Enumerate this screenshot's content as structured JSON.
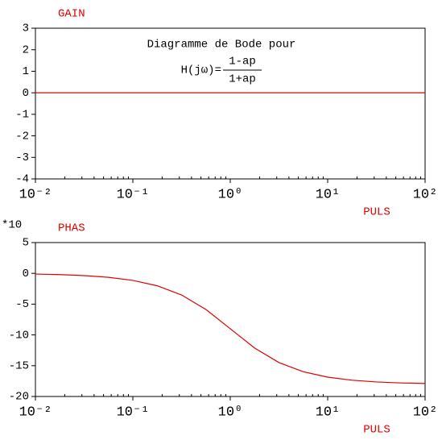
{
  "chart_data": [
    {
      "type": "line",
      "title": "Diagramme de Bode pour",
      "formula": {
        "lhs": "H(jω)=",
        "numerator": "1-ap",
        "denominator": "1+ap"
      },
      "ylabel": "GAIN",
      "xlabel": "PULS",
      "xscale": "log",
      "color": "#e00000",
      "x": [
        0.01,
        100
      ],
      "values": [
        0,
        0
      ],
      "xlim": [
        0.01,
        100
      ],
      "xticks": [
        {
          "value": 0.01,
          "label": "10⁻²"
        },
        {
          "value": 0.1,
          "label": "10⁻¹"
        },
        {
          "value": 1,
          "label": "10⁰"
        },
        {
          "value": 10,
          "label": "10¹"
        },
        {
          "value": 100,
          "label": "10²"
        }
      ],
      "ylim": [
        -4,
        3
      ],
      "yticks": [
        -4,
        -3,
        -2,
        -1,
        0,
        1,
        2,
        3
      ]
    },
    {
      "type": "line",
      "ylabel": "PHAS",
      "ymultiplier": "*10",
      "xlabel": "PULS",
      "xscale": "log",
      "color": "#e00000",
      "x": [
        0.01,
        0.01778,
        0.03162,
        0.05623,
        0.1,
        0.17783,
        0.31623,
        0.56234,
        1,
        1.77828,
        3.16228,
        5.62341,
        10,
        17.7828,
        31.6228,
        56.2341,
        100
      ],
      "values": [
        -0.1146,
        -0.2037,
        -0.3622,
        -0.6437,
        -1.1421,
        -2.0168,
        -3.5097,
        -5.8706,
        -9,
        -12.1294,
        -14.4903,
        -15.9832,
        -16.8579,
        -17.3563,
        -17.6378,
        -17.7963,
        -17.8854
      ],
      "xlim": [
        0.01,
        100
      ],
      "xticks": [
        {
          "value": 0.01,
          "label": "10⁻²"
        },
        {
          "value": 0.1,
          "label": "10⁻¹"
        },
        {
          "value": 1,
          "label": "10⁰"
        },
        {
          "value": 10,
          "label": "10¹"
        },
        {
          "value": 100,
          "label": "10²"
        }
      ],
      "ylim": [
        -20,
        5
      ],
      "yticks": [
        -20,
        -15,
        -10,
        -5,
        0,
        5
      ]
    }
  ]
}
